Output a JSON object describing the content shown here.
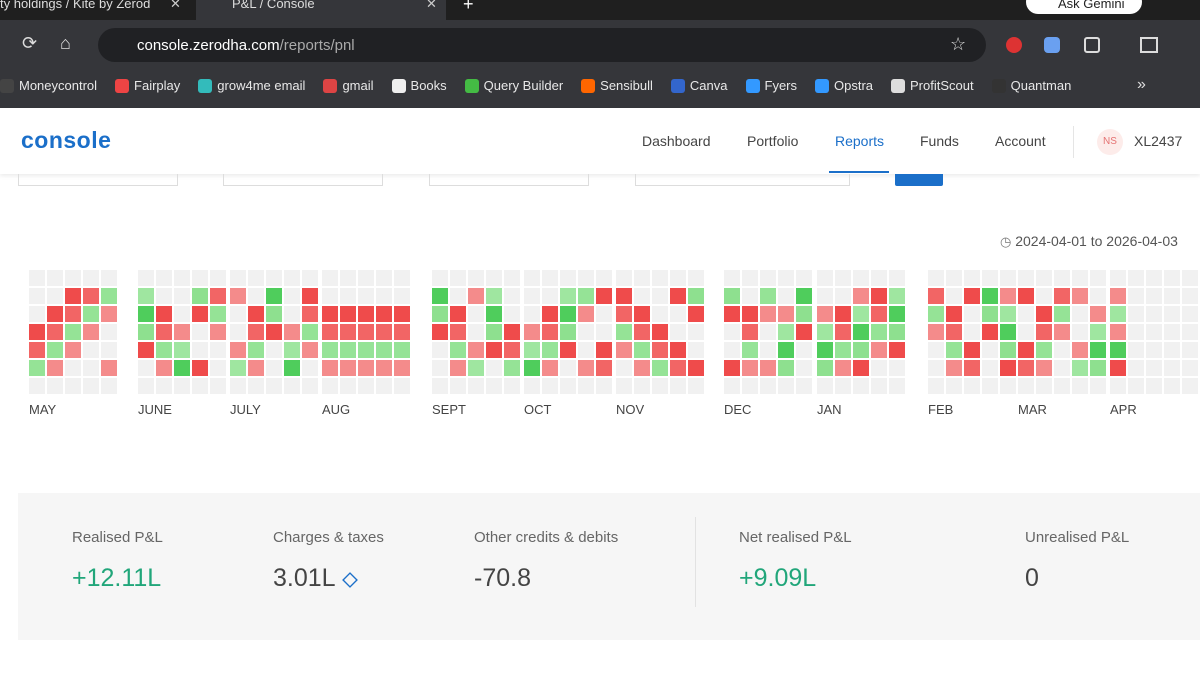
{
  "browser": {
    "tabs": [
      "ty holdings / Kite by Zerod",
      "P&L / Console"
    ],
    "ask": "Ask Gemini",
    "url_host": "console.zerodha.com",
    "url_path": "/reports/pnl",
    "bookmarks": [
      "Moneycontrol",
      "Fairplay",
      "grow4me email",
      "gmail",
      "Books",
      "Query Builder",
      "Sensibull",
      "Canva",
      "Fyers",
      "Opstra",
      "ProfitScout",
      "Quantman"
    ],
    "more": "»"
  },
  "header": {
    "logo": "console",
    "nav": [
      "Dashboard",
      "Portfolio",
      "Reports",
      "Funds",
      "Account"
    ],
    "avatar": "NS",
    "user": "XL2437"
  },
  "heatmap": {
    "range": "2024-04-01 to 2026-04-03",
    "months": [
      "MAY",
      "JUNE",
      "JULY",
      "AUG",
      "SEPT",
      "OCT",
      "NOV",
      "DEC",
      "JAN",
      "FEB",
      "MAR",
      "APR"
    ]
  },
  "summary": [
    {
      "label": "Realised P&L",
      "value": "+12.11L"
    },
    {
      "label": "Charges & taxes",
      "value": "3.01L"
    },
    {
      "label": "Other credits & debits",
      "value": "-70.8"
    },
    {
      "label": "Net realised P&L",
      "value": "+9.09L"
    },
    {
      "label": "Unrealised P&L",
      "value": "0"
    }
  ]
}
